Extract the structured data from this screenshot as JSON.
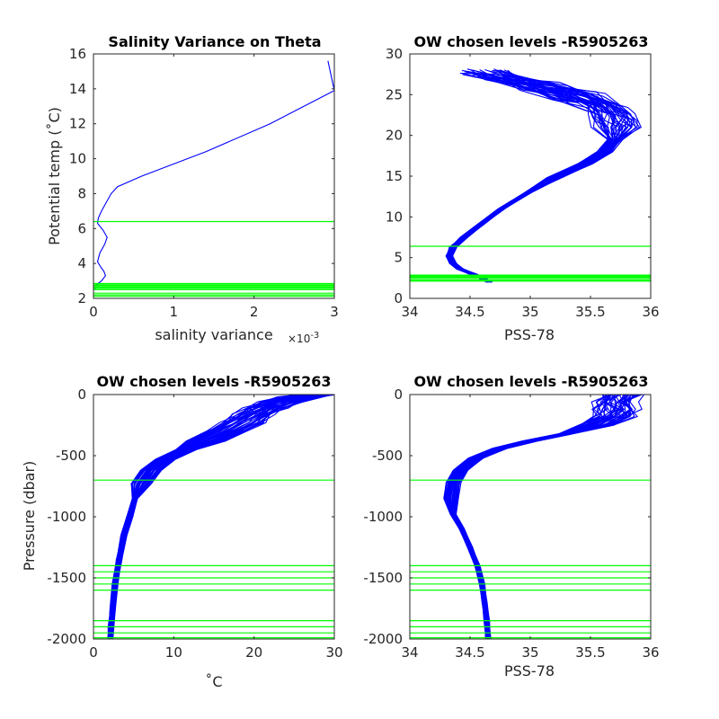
{
  "colors": {
    "profile": "#0000ff",
    "level": "#00ff00",
    "axis": "#262626"
  },
  "chart_data": [
    {
      "type": "line",
      "title": "Salinity Variance on Theta",
      "xlabel": "salinity variance",
      "x_exponent_base": "×10",
      "x_exponent_power": "-3",
      "ylabel": "Potential temp (˚C)",
      "xlim": [
        0,
        3
      ],
      "ylim": [
        2,
        16
      ],
      "xticks": [
        0,
        1,
        2,
        3
      ],
      "xtick_labels": [
        "0",
        "1",
        "2",
        "3"
      ],
      "yticks": [
        2,
        4,
        6,
        8,
        10,
        12,
        14,
        16
      ],
      "ytick_labels": [
        "2",
        "4",
        "6",
        "8",
        "10",
        "12",
        "14",
        "16"
      ],
      "grid": false,
      "series": [
        {
          "points": [
            [
              2.92,
              15.6
            ],
            [
              3.0,
              13.9
            ],
            [
              2.2,
              12.0
            ],
            [
              1.4,
              10.4
            ],
            [
              0.6,
              9.0
            ],
            [
              0.3,
              8.4
            ],
            [
              0.22,
              8.0
            ],
            [
              0.16,
              7.5
            ],
            [
              0.1,
              7.0
            ],
            [
              0.06,
              6.6
            ],
            [
              0.05,
              6.3
            ],
            [
              0.12,
              5.9
            ],
            [
              0.17,
              5.5
            ],
            [
              0.14,
              5.1
            ],
            [
              0.08,
              4.6
            ],
            [
              0.05,
              4.1
            ],
            [
              0.09,
              3.8
            ],
            [
              0.13,
              3.55
            ],
            [
              0.15,
              3.3
            ],
            [
              0.1,
              3.0
            ],
            [
              0.04,
              2.8
            ],
            [
              0.02,
              2.5
            ]
          ]
        }
      ],
      "levels": [
        6.4,
        2.85,
        2.78,
        2.72,
        2.65,
        2.58,
        2.5,
        2.3,
        2.2,
        2.12
      ]
    },
    {
      "type": "line",
      "title": "OW chosen levels -R5905263",
      "xlabel": "PSS-78",
      "ylabel": "",
      "xlim": [
        34,
        36
      ],
      "ylim": [
        0,
        30
      ],
      "xticks": [
        34,
        34.5,
        35,
        35.5,
        36
      ],
      "xtick_labels": [
        "34",
        "34.5",
        "35",
        "35.5",
        "36"
      ],
      "yticks": [
        0,
        5,
        10,
        15,
        20,
        25,
        30
      ],
      "ytick_labels": [
        "0",
        "5",
        "10",
        "15",
        "20",
        "25",
        "30"
      ],
      "grid": false,
      "profile_count": 40,
      "series": [
        {
          "points": [
            [
              34.66,
              2.0
            ],
            [
              34.6,
              2.5
            ],
            [
              34.52,
              3.0
            ],
            [
              34.42,
              3.6
            ],
            [
              34.36,
              4.3
            ],
            [
              34.33,
              5.2
            ],
            [
              34.36,
              6.3
            ],
            [
              34.45,
              7.5
            ],
            [
              34.58,
              9.0
            ],
            [
              34.76,
              11.0
            ],
            [
              34.98,
              13.0
            ],
            [
              35.2,
              14.8
            ],
            [
              35.45,
              16.5
            ],
            [
              35.62,
              18.0
            ],
            [
              35.7,
              19.5
            ],
            [
              35.72,
              21.0
            ],
            [
              35.7,
              22.3
            ],
            [
              35.6,
              23.5
            ],
            [
              35.38,
              24.8
            ],
            [
              35.1,
              26.0
            ],
            [
              34.83,
              27.0
            ],
            [
              34.62,
              27.6
            ]
          ]
        }
      ],
      "levels": [
        6.4,
        2.85,
        2.78,
        2.72,
        2.65,
        2.58,
        2.5,
        2.3,
        2.2,
        2.12
      ]
    },
    {
      "type": "line",
      "title": "OW chosen levels -R5905263",
      "xlabel": "˚C",
      "ylabel": "Pressure (dbar)",
      "xlim": [
        0,
        30
      ],
      "ylim": [
        -2000,
        0
      ],
      "xticks": [
        0,
        10,
        20,
        30
      ],
      "xtick_labels": [
        "0",
        "10",
        "20",
        "30"
      ],
      "yticks": [
        0,
        -500,
        -1000,
        -1500,
        -2000
      ],
      "ytick_labels": [
        "0",
        "-500",
        "-1000",
        "-1500",
        "-2000"
      ],
      "grid": false,
      "profile_count": 40,
      "series": [
        {
          "points": [
            [
              27.5,
              0
            ],
            [
              26.0,
              -20
            ],
            [
              23.5,
              -60
            ],
            [
              21.5,
              -110
            ],
            [
              20.0,
              -160
            ],
            [
              18.5,
              -230
            ],
            [
              16.5,
              -300
            ],
            [
              14.0,
              -380
            ],
            [
              11.5,
              -450
            ],
            [
              9.0,
              -530
            ],
            [
              7.2,
              -620
            ],
            [
              6.0,
              -730
            ],
            [
              5.2,
              -850
            ],
            [
              4.5,
              -1000
            ],
            [
              3.8,
              -1150
            ],
            [
              3.2,
              -1350
            ],
            [
              2.7,
              -1550
            ],
            [
              2.4,
              -1750
            ],
            [
              2.2,
              -1900
            ],
            [
              2.1,
              -2000
            ]
          ]
        }
      ],
      "levels": [
        -700,
        -1400,
        -1450,
        -1500,
        -1550,
        -1600,
        -1850,
        -1900,
        -1950,
        -1990
      ]
    },
    {
      "type": "line",
      "title": "OW chosen levels -R5905263",
      "xlabel": "PSS-78",
      "ylabel": "",
      "xlim": [
        34,
        36
      ],
      "ylim": [
        -2000,
        0
      ],
      "xticks": [
        34,
        34.5,
        35,
        35.5,
        36
      ],
      "xtick_labels": [
        "34",
        "34.5",
        "35",
        "35.5",
        "36"
      ],
      "yticks": [
        0,
        -500,
        -1000,
        -1500,
        -2000
      ],
      "ytick_labels": [
        "0",
        "-500",
        "-1000",
        "-1500",
        "-2000"
      ],
      "grid": false,
      "profile_count": 40,
      "series": [
        {
          "points": [
            [
              35.75,
              0
            ],
            [
              35.7,
              -60
            ],
            [
              35.72,
              -120
            ],
            [
              35.7,
              -180
            ],
            [
              35.55,
              -250
            ],
            [
              35.3,
              -320
            ],
            [
              35.0,
              -380
            ],
            [
              34.75,
              -440
            ],
            [
              34.55,
              -520
            ],
            [
              34.42,
              -620
            ],
            [
              34.36,
              -720
            ],
            [
              34.34,
              -850
            ],
            [
              34.36,
              -980
            ],
            [
              34.43,
              -1100
            ],
            [
              34.5,
              -1250
            ],
            [
              34.56,
              -1400
            ],
            [
              34.6,
              -1550
            ],
            [
              34.62,
              -1700
            ],
            [
              34.64,
              -1850
            ],
            [
              34.65,
              -2000
            ]
          ]
        }
      ],
      "levels": [
        -700,
        -1400,
        -1450,
        -1500,
        -1550,
        -1600,
        -1850,
        -1900,
        -1950,
        -1990
      ]
    }
  ]
}
